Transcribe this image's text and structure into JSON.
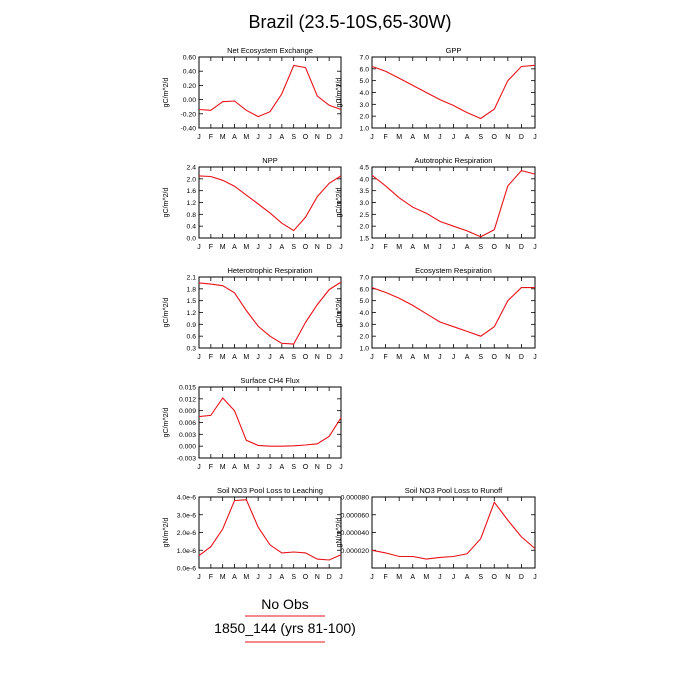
{
  "figure": {
    "title": "Brazil (23.5-10S,65-30W)",
    "legend_line1": "No Obs",
    "legend_line2": "1850_144 (yrs 81-100)",
    "line_color": "#e8121a"
  },
  "chart_data": [
    {
      "type": "line",
      "title": "Net Ecosystem Exchange",
      "ylabel": "gC/m^2/d",
      "categories": [
        "J",
        "F",
        "M",
        "A",
        "M",
        "J",
        "J",
        "A",
        "S",
        "O",
        "N",
        "D",
        "J"
      ],
      "ylim": [
        -0.4,
        0.6
      ],
      "yticks": [
        "0.60",
        "0.40",
        "0.20",
        "0.00",
        "-0.20",
        "-0.40"
      ],
      "ytick_values": [
        0.6,
        0.4,
        0.2,
        0.0,
        -0.2,
        -0.4
      ],
      "series": [
        {
          "values": [
            -0.14,
            -0.15,
            -0.03,
            -0.02,
            -0.15,
            -0.24,
            -0.17,
            0.08,
            0.48,
            0.45,
            0.05,
            -0.08,
            -0.14
          ]
        }
      ]
    },
    {
      "type": "line",
      "title": "GPP",
      "ylabel": "gC/m^2/d",
      "categories": [
        "J",
        "F",
        "M",
        "A",
        "M",
        "J",
        "J",
        "A",
        "S",
        "O",
        "N",
        "D",
        "J"
      ],
      "ylim": [
        1.0,
        7.0
      ],
      "yticks": [
        "7.0",
        "6.0",
        "5.0",
        "4.0",
        "3.0",
        "2.0",
        "1.0"
      ],
      "ytick_values": [
        7,
        6,
        5,
        4,
        3,
        2,
        1
      ],
      "series": [
        {
          "values": [
            6.2,
            5.8,
            5.2,
            4.6,
            4.0,
            3.4,
            2.9,
            2.3,
            1.8,
            2.6,
            5.0,
            6.2,
            6.3
          ]
        }
      ]
    },
    {
      "type": "line",
      "title": "NPP",
      "ylabel": "gC/m^2/d",
      "categories": [
        "J",
        "F",
        "M",
        "A",
        "M",
        "J",
        "J",
        "A",
        "S",
        "O",
        "N",
        "D",
        "J"
      ],
      "ylim": [
        0.0,
        2.4
      ],
      "yticks": [
        "2.4",
        "2.0",
        "1.6",
        "1.2",
        "0.8",
        "0.4",
        "0.0"
      ],
      "ytick_values": [
        2.4,
        2.0,
        1.6,
        1.2,
        0.8,
        0.4,
        0.0
      ],
      "series": [
        {
          "values": [
            2.1,
            2.08,
            1.95,
            1.75,
            1.45,
            1.15,
            0.85,
            0.5,
            0.25,
            0.7,
            1.4,
            1.85,
            2.1
          ]
        }
      ]
    },
    {
      "type": "line",
      "title": "Autotrophic Respiration",
      "ylabel": "gC/m^2/d",
      "categories": [
        "J",
        "F",
        "M",
        "A",
        "M",
        "J",
        "J",
        "A",
        "S",
        "O",
        "N",
        "D",
        "J"
      ],
      "ylim": [
        1.5,
        4.5
      ],
      "yticks": [
        "4.5",
        "4.0",
        "3.5",
        "3.0",
        "2.5",
        "2.0",
        "1.5"
      ],
      "ytick_values": [
        4.5,
        4.0,
        3.5,
        3.0,
        2.5,
        2.0,
        1.5
      ],
      "series": [
        {
          "values": [
            4.15,
            3.7,
            3.2,
            2.8,
            2.55,
            2.2,
            2.0,
            1.8,
            1.55,
            1.85,
            3.7,
            4.35,
            4.2
          ]
        }
      ]
    },
    {
      "type": "line",
      "title": "Heterotrophic Respiration",
      "ylabel": "gC/m^2/d",
      "categories": [
        "J",
        "F",
        "M",
        "A",
        "M",
        "J",
        "J",
        "A",
        "S",
        "O",
        "N",
        "D",
        "J"
      ],
      "ylim": [
        0.3,
        2.1
      ],
      "yticks": [
        "2.1",
        "1.8",
        "1.5",
        "1.2",
        "0.9",
        "0.6",
        "0.3"
      ],
      "ytick_values": [
        2.1,
        1.8,
        1.5,
        1.2,
        0.9,
        0.6,
        0.3
      ],
      "series": [
        {
          "values": [
            1.95,
            1.92,
            1.88,
            1.7,
            1.25,
            0.85,
            0.6,
            0.42,
            0.4,
            0.95,
            1.4,
            1.78,
            1.97
          ]
        }
      ]
    },
    {
      "type": "line",
      "title": "Ecosystem Respiration",
      "ylabel": "gC/m^2/d",
      "categories": [
        "J",
        "F",
        "M",
        "A",
        "M",
        "J",
        "J",
        "A",
        "S",
        "O",
        "N",
        "D",
        "J"
      ],
      "ylim": [
        1.0,
        7.0
      ],
      "yticks": [
        "7.0",
        "6.0",
        "5.0",
        "4.0",
        "3.0",
        "2.0",
        "1.0"
      ],
      "ytick_values": [
        7,
        6,
        5,
        4,
        3,
        2,
        1
      ],
      "series": [
        {
          "values": [
            6.1,
            5.7,
            5.2,
            4.6,
            3.9,
            3.2,
            2.8,
            2.4,
            2.0,
            2.8,
            5.0,
            6.1,
            6.1
          ]
        }
      ]
    },
    {
      "type": "line",
      "title": "Surface CH4 Flux",
      "ylabel": "gC/m^2/d",
      "categories": [
        "J",
        "F",
        "M",
        "A",
        "M",
        "J",
        "J",
        "A",
        "S",
        "O",
        "N",
        "D",
        "J"
      ],
      "ylim": [
        -0.003,
        0.015
      ],
      "yticks": [
        "0.015",
        "0.012",
        "0.009",
        "0.006",
        "0.003",
        "0.000",
        "-0.003"
      ],
      "ytick_values": [
        0.015,
        0.012,
        0.009,
        0.006,
        0.003,
        0.0,
        -0.003
      ],
      "series": [
        {
          "values": [
            0.0075,
            0.0078,
            0.0122,
            0.009,
            0.0015,
            0.0002,
            0.0,
            0.0,
            0.0001,
            0.0003,
            0.0006,
            0.0025,
            0.0072
          ]
        }
      ]
    },
    {
      "type": "line",
      "title": "Soil NO3 Pool Loss to Leaching",
      "ylabel": "gN/m^2/d",
      "categories": [
        "J",
        "F",
        "M",
        "A",
        "M",
        "J",
        "J",
        "A",
        "S",
        "O",
        "N",
        "D",
        "J"
      ],
      "ylim": [
        0.0,
        4.0
      ],
      "yticks": [
        "4.0e-6",
        "3.0e-6",
        "2.0e-6",
        "1.0e-6",
        "0.0e-6"
      ],
      "ytick_values": [
        4,
        3,
        2,
        1,
        0
      ],
      "series": [
        {
          "values": [
            0.7,
            1.2,
            2.2,
            3.8,
            3.85,
            2.3,
            1.3,
            0.85,
            0.9,
            0.85,
            0.5,
            0.45,
            0.75
          ]
        }
      ]
    },
    {
      "type": "line",
      "title": "Soil NO3 Pool Loss to Runoff",
      "ylabel": "gN/m^2/d",
      "categories": [
        "J",
        "F",
        "M",
        "A",
        "M",
        "J",
        "J",
        "A",
        "S",
        "O",
        "N",
        "D",
        "J"
      ],
      "ylim": [
        0.0,
        80.0
      ],
      "yticks": [
        "0.000080",
        "0.000060",
        "0.000040",
        "0.000020"
      ],
      "ytick_values": [
        80,
        60,
        40,
        20
      ],
      "series": [
        {
          "values": [
            20,
            17,
            13,
            13,
            10,
            12,
            13,
            16,
            33,
            74,
            54,
            35,
            22
          ]
        }
      ]
    }
  ]
}
